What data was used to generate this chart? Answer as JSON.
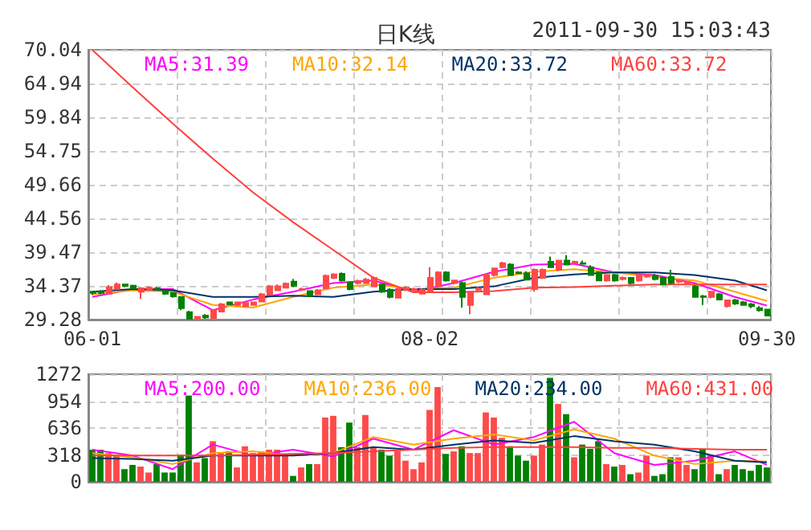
{
  "chart_data": [
    {
      "type": "candlestick",
      "title": "日K线",
      "annotations": [
        "2011-09-30 15:03:43"
      ],
      "categories": [
        "06-01",
        null,
        null,
        null,
        null,
        null,
        null,
        null,
        null,
        null,
        null,
        null,
        null,
        null,
        null,
        null,
        null,
        null,
        null,
        null,
        null,
        null,
        null,
        null,
        null,
        null,
        null,
        null,
        null,
        null,
        null,
        null,
        null,
        null,
        null,
        null,
        null,
        null,
        null,
        null,
        null,
        null,
        "08-02",
        null,
        null,
        null,
        null,
        null,
        null,
        null,
        null,
        null,
        null,
        null,
        null,
        null,
        null,
        null,
        null,
        null,
        null,
        null,
        null,
        null,
        null,
        null,
        null,
        null,
        null,
        null,
        null,
        null,
        null,
        null,
        null,
        null,
        null,
        null,
        null,
        null,
        null,
        null,
        null,
        null,
        "09-30"
      ],
      "ohlc": [
        [
          33.5,
          33.6,
          33.0,
          33.3
        ],
        [
          33.5,
          33.7,
          33.1,
          33.3
        ],
        [
          33.2,
          34.5,
          33.1,
          34.2
        ],
        [
          33.9,
          34.9,
          33.8,
          34.6
        ],
        [
          34.6,
          34.7,
          34.2,
          34.4
        ],
        [
          34.4,
          34.5,
          33.9,
          34.0
        ],
        [
          33.5,
          34.2,
          32.4,
          34.0
        ],
        [
          33.8,
          34.3,
          33.6,
          34.1
        ],
        [
          34.0,
          34.2,
          33.8,
          33.9
        ],
        [
          33.6,
          33.8,
          33.0,
          33.2
        ],
        [
          33.3,
          33.4,
          32.6,
          32.8
        ],
        [
          32.7,
          32.8,
          30.7,
          31.0
        ],
        [
          30.4,
          30.6,
          29.3,
          29.4
        ],
        [
          29.4,
          29.8,
          29.3,
          29.7
        ],
        [
          29.9,
          30.1,
          29.4,
          29.6
        ],
        [
          29.5,
          30.9,
          29.4,
          30.7
        ],
        [
          30.5,
          31.8,
          30.4,
          31.6
        ],
        [
          31.9,
          32.0,
          31.5,
          31.6
        ],
        [
          31.5,
          32.0,
          31.3,
          31.9
        ],
        [
          31.3,
          32.0,
          31.2,
          31.8
        ],
        [
          31.5,
          32.0,
          31.4,
          31.9
        ],
        [
          32.0,
          33.3,
          31.9,
          33.1
        ],
        [
          33.0,
          34.5,
          32.9,
          34.3
        ],
        [
          33.7,
          34.6,
          33.6,
          34.3
        ],
        [
          34.1,
          34.9,
          34.0,
          34.7
        ],
        [
          35.0,
          35.4,
          34.2,
          34.4
        ],
        [
          33.8,
          34.1,
          33.6,
          33.9
        ],
        [
          33.6,
          33.7,
          32.8,
          32.9
        ],
        [
          33.1,
          33.9,
          33.0,
          33.7
        ],
        [
          34.0,
          36.1,
          33.9,
          35.9
        ],
        [
          35.6,
          36.3,
          35.4,
          36.1
        ],
        [
          36.2,
          36.4,
          35.0,
          35.2
        ],
        [
          34.9,
          35.0,
          33.7,
          33.9
        ],
        [
          34.8,
          35.3,
          34.6,
          35.1
        ],
        [
          34.8,
          35.6,
          34.7,
          35.3
        ],
        [
          34.3,
          35.8,
          34.2,
          35.6
        ],
        [
          34.6,
          34.7,
          33.3,
          33.5
        ],
        [
          33.8,
          34.0,
          32.5,
          32.7
        ],
        [
          32.6,
          34.1,
          32.5,
          33.9
        ],
        [
          33.8,
          34.3,
          33.6,
          34.1
        ],
        [
          33.5,
          34.1,
          33.3,
          33.9
        ],
        [
          33.2,
          34.0,
          33.1,
          33.8
        ],
        [
          33.5,
          37.2,
          33.3,
          35.6
        ],
        [
          34.3,
          36.6,
          34.1,
          36.4
        ],
        [
          36.4,
          36.6,
          35.0,
          35.2
        ],
        [
          34.8,
          35.3,
          34.6,
          35.2
        ],
        [
          34.8,
          35.0,
          31.1,
          32.7
        ],
        [
          31.5,
          33.6,
          30.1,
          33.5
        ],
        [
          33.8,
          34.2,
          33.6,
          34.0
        ],
        [
          33.1,
          36.2,
          33.0,
          36.0
        ],
        [
          36.0,
          37.1,
          35.8,
          37.0
        ],
        [
          37.2,
          38.0,
          37.0,
          37.8
        ],
        [
          37.6,
          37.8,
          36.0,
          36.0
        ],
        [
          36.4,
          36.6,
          36.2,
          36.3
        ],
        [
          36.3,
          36.6,
          35.2,
          35.3
        ],
        [
          33.9,
          37.0,
          33.5,
          36.8
        ],
        [
          35.6,
          37.0,
          35.4,
          36.8
        ],
        [
          38.0,
          38.8,
          37.1,
          37.2
        ],
        [
          36.8,
          38.3,
          36.6,
          38.2
        ],
        [
          38.2,
          39.0,
          37.5,
          37.6
        ],
        [
          37.8,
          38.2,
          37.7,
          38.0
        ],
        [
          37.8,
          38.2,
          37.6,
          37.7
        ],
        [
          37.2,
          37.5,
          36.0,
          36.0
        ],
        [
          36.4,
          36.6,
          35.2,
          35.2
        ],
        [
          35.2,
          36.1,
          35.0,
          36.0
        ],
        [
          36.0,
          36.2,
          35.0,
          35.2
        ],
        [
          35.4,
          35.8,
          35.2,
          35.6
        ],
        [
          35.6,
          35.7,
          34.6,
          34.8
        ],
        [
          35.2,
          36.1,
          35.0,
          36.0
        ],
        [
          35.8,
          36.2,
          35.6,
          36.0
        ],
        [
          35.9,
          36.2,
          35.2,
          35.4
        ],
        [
          35.6,
          35.8,
          34.5,
          34.6
        ],
        [
          35.7,
          36.8,
          34.6,
          34.8
        ],
        [
          35.0,
          35.4,
          34.8,
          35.2
        ],
        [
          34.8,
          35.1,
          34.6,
          35.0
        ],
        [
          34.3,
          34.5,
          32.6,
          32.7
        ],
        [
          32.8,
          33.0,
          31.5,
          32.7
        ],
        [
          32.7,
          33.6,
          32.5,
          33.5
        ],
        [
          33.1,
          33.3,
          32.2,
          32.3
        ],
        [
          31.3,
          32.3,
          31.1,
          32.2
        ],
        [
          32.2,
          32.4,
          31.5,
          31.7
        ],
        [
          31.9,
          32.1,
          31.4,
          31.5
        ],
        [
          31.6,
          31.8,
          31.0,
          31.3
        ],
        [
          31.0,
          31.3,
          30.5,
          30.7
        ],
        [
          30.8,
          30.9,
          29.8,
          29.9
        ]
      ],
      "colors": [
        "#008000",
        "#008000",
        "#ff4a4a",
        "#ff4a4a",
        "#008000",
        "#008000",
        "#ff4a4a",
        "#ff4a4a",
        "#008000",
        "#008000",
        "#008000",
        "#008000",
        "#008000",
        "#ff4a4a",
        "#008000",
        "#ff4a4a",
        "#ff4a4a",
        "#008000",
        "#ff4a4a",
        "#ff4a4a",
        "#ff4a4a",
        "#ff4a4a",
        "#ff4a4a",
        "#ff4a4a",
        "#ff4a4a",
        "#008000",
        "#ff4a4a",
        "#008000",
        "#ff4a4a",
        "#ff4a4a",
        "#ff4a4a",
        "#008000",
        "#008000",
        "#ff4a4a",
        "#ff4a4a",
        "#ff4a4a",
        "#008000",
        "#008000",
        "#ff4a4a",
        "#ff4a4a",
        "#ff4a4a",
        "#ff4a4a",
        "#ff4a4a",
        "#ff4a4a",
        "#008000",
        "#ff4a4a",
        "#008000",
        "#ff4a4a",
        "#ff4a4a",
        "#ff4a4a",
        "#ff4a4a",
        "#ff4a4a",
        "#008000",
        "#008000",
        "#008000",
        "#ff4a4a",
        "#ff4a4a",
        "#008000",
        "#ff4a4a",
        "#008000",
        "#ff4a4a",
        "#008000",
        "#008000",
        "#008000",
        "#ff4a4a",
        "#008000",
        "#ff4a4a",
        "#008000",
        "#ff4a4a",
        "#ff4a4a",
        "#008000",
        "#008000",
        "#008000",
        "#ff4a4a",
        "#ff4a4a",
        "#008000",
        "#008000",
        "#ff4a4a",
        "#008000",
        "#ff4a4a",
        "#008000",
        "#008000",
        "#008000",
        "#008000",
        "#008000"
      ],
      "series": [
        {
          "type": "line",
          "name": "MA5:31.39",
          "color": "#ff00ff",
          "values": [
            32.7,
            null,
            null,
            null,
            null,
            33.9,
            null,
            null,
            null,
            null,
            33.9,
            null,
            null,
            null,
            null,
            30.7,
            null,
            null,
            null,
            null,
            32.3,
            null,
            null,
            null,
            null,
            33.5,
            null,
            null,
            null,
            null,
            34.8,
            null,
            null,
            null,
            null,
            35.2,
            null,
            null,
            null,
            null,
            33.5,
            null,
            null,
            null,
            null,
            34.8,
            null,
            null,
            null,
            null,
            36.5,
            null,
            null,
            null,
            null,
            37.6,
            null,
            null,
            null,
            null,
            37.7,
            null,
            null,
            null,
            null,
            36.4,
            null,
            null,
            null,
            null,
            36.0,
            null,
            null,
            null,
            null,
            34.8,
            null,
            null,
            null,
            null,
            32.7,
            null,
            null,
            null,
            31.4
          ]
        },
        {
          "type": "line",
          "name": "MA10:32.14",
          "color": "#ffa500",
          "values": [
            33.1,
            null,
            null,
            null,
            null,
            33.7,
            null,
            null,
            null,
            null,
            33.5,
            null,
            null,
            null,
            null,
            31.5,
            null,
            null,
            null,
            null,
            31.1,
            null,
            null,
            null,
            null,
            32.7,
            null,
            null,
            null,
            null,
            34.1,
            null,
            null,
            null,
            null,
            34.6,
            null,
            null,
            null,
            null,
            33.9,
            null,
            null,
            null,
            null,
            34.1,
            null,
            null,
            null,
            null,
            35.6,
            null,
            null,
            null,
            null,
            36.5,
            null,
            null,
            null,
            null,
            36.9,
            null,
            null,
            null,
            null,
            36.4,
            null,
            null,
            null,
            null,
            35.7,
            null,
            null,
            null,
            null,
            35.2,
            null,
            null,
            null,
            null,
            33.5,
            null,
            null,
            null,
            32.1
          ]
        },
        {
          "type": "line",
          "name": "MA20:33.72",
          "color": "#003366",
          "values": [
            33.5,
            null,
            null,
            null,
            null,
            33.9,
            null,
            null,
            null,
            null,
            33.7,
            null,
            null,
            null,
            null,
            32.7,
            null,
            null,
            null,
            null,
            32.7,
            null,
            null,
            null,
            null,
            32.9,
            null,
            null,
            null,
            null,
            32.7,
            null,
            null,
            null,
            null,
            33.5,
            null,
            null,
            null,
            null,
            33.9,
            null,
            null,
            null,
            null,
            33.9,
            null,
            null,
            null,
            null,
            34.3,
            null,
            null,
            null,
            null,
            35.6,
            null,
            null,
            null,
            null,
            36.1,
            null,
            null,
            null,
            null,
            36.4,
            null,
            null,
            null,
            null,
            36.4,
            null,
            null,
            null,
            null,
            36.0,
            null,
            null,
            null,
            null,
            35.2,
            null,
            null,
            null,
            33.7
          ]
        },
        {
          "type": "line",
          "name": "MA60:33.72",
          "color": "#ff4040",
          "values": [
            70.0,
            null,
            null,
            null,
            null,
            64.4,
            null,
            null,
            null,
            null,
            58.9,
            null,
            null,
            null,
            null,
            53.6,
            null,
            null,
            null,
            null,
            48.5,
            null,
            null,
            null,
            null,
            44.0,
            null,
            null,
            null,
            null,
            39.8,
            null,
            null,
            null,
            null,
            35.6,
            null,
            null,
            null,
            null,
            33.4,
            null,
            null,
            null,
            null,
            33.4,
            null,
            null,
            null,
            null,
            33.6,
            null,
            null,
            null,
            null,
            34.1,
            null,
            null,
            null,
            null,
            34.2,
            null,
            null,
            null,
            null,
            34.4,
            null,
            null,
            null,
            null,
            34.6,
            null,
            null,
            null,
            null,
            34.6,
            null,
            null,
            null,
            null,
            34.6,
            null,
            null,
            null,
            34.6
          ]
        }
      ],
      "ylim": [
        29.28,
        70.04
      ],
      "yticks": [
        29.28,
        34.37,
        39.47,
        44.56,
        49.66,
        54.75,
        59.84,
        64.94,
        70.04
      ],
      "grid": true,
      "legend": "top"
    },
    {
      "type": "bar",
      "categories": [
        null,
        null,
        null,
        null,
        null,
        null,
        null,
        null,
        null,
        null,
        null,
        null,
        null,
        null,
        null,
        null,
        null,
        null,
        null,
        null,
        null,
        null,
        null,
        null,
        null,
        null,
        null,
        null,
        null,
        null,
        null,
        null,
        null,
        null,
        null,
        null,
        null,
        null,
        null,
        null,
        null,
        null,
        null,
        null,
        null,
        null,
        null,
        null,
        null,
        null,
        null,
        null,
        null,
        null,
        null,
        null,
        null,
        null,
        null,
        null,
        null,
        null,
        null,
        null,
        null,
        null,
        null,
        null,
        null,
        null,
        null,
        null,
        null,
        null,
        null,
        null,
        null,
        null,
        null,
        null,
        null,
        null,
        null,
        null,
        null
      ],
      "series": [
        {
          "type": "bar",
          "colors": [
            "#008000",
            "#008000",
            "#ff4a4a",
            "#ff4a4a",
            "#008000",
            "#008000",
            "#ff4a4a",
            "#ff4a4a",
            "#008000",
            "#008000",
            "#008000",
            "#008000",
            "#008000",
            "#ff4a4a",
            "#008000",
            "#ff4a4a",
            "#ff4a4a",
            "#008000",
            "#ff4a4a",
            "#ff4a4a",
            "#ff4a4a",
            "#ff4a4a",
            "#ff4a4a",
            "#ff4a4a",
            "#ff4a4a",
            "#008000",
            "#ff4a4a",
            "#008000",
            "#ff4a4a",
            "#ff4a4a",
            "#ff4a4a",
            "#008000",
            "#008000",
            "#ff4a4a",
            "#ff4a4a",
            "#ff4a4a",
            "#008000",
            "#008000",
            "#ff4a4a",
            "#ff4a4a",
            "#ff4a4a",
            "#ff4a4a",
            "#ff4a4a",
            "#ff4a4a",
            "#008000",
            "#ff4a4a",
            "#008000",
            "#ff4a4a",
            "#ff4a4a",
            "#ff4a4a",
            "#ff4a4a",
            "#ff4a4a",
            "#008000",
            "#008000",
            "#008000",
            "#ff4a4a",
            "#ff4a4a",
            "#008000",
            "#ff4a4a",
            "#008000",
            "#ff4a4a",
            "#008000",
            "#008000",
            "#008000",
            "#ff4a4a",
            "#008000",
            "#ff4a4a",
            "#008000",
            "#ff4a4a",
            "#ff4a4a",
            "#008000",
            "#008000",
            "#008000",
            "#ff4a4a",
            "#ff4a4a",
            "#008000",
            "#008000",
            "#ff4a4a",
            "#008000",
            "#ff4a4a",
            "#008000",
            "#008000",
            "#008000",
            "#008000",
            "#008000"
          ],
          "values": [
            380,
            380,
            340,
            310,
            150,
            200,
            180,
            110,
            210,
            110,
            110,
            320,
            1020,
            230,
            280,
            480,
            340,
            360,
            170,
            420,
            340,
            360,
            380,
            380,
            320,
            70,
            170,
            210,
            210,
            760,
            780,
            410,
            700,
            410,
            790,
            410,
            380,
            310,
            360,
            250,
            150,
            230,
            850,
            1120,
            330,
            360,
            420,
            340,
            340,
            820,
            760,
            520,
            420,
            310,
            250,
            310,
            440,
            1230,
            920,
            800,
            290,
            440,
            390,
            480,
            210,
            180,
            200,
            90,
            110,
            310,
            70,
            90,
            290,
            290,
            200,
            150,
            390,
            320,
            90,
            150,
            200,
            150,
            130,
            200,
            170
          ]
        },
        {
          "type": "line",
          "name": "MA5:200.00",
          "color": "#ff00ff",
          "values": [
            380,
            null,
            null,
            null,
            null,
            310,
            null,
            null,
            null,
            null,
            150,
            null,
            null,
            null,
            null,
            440,
            null,
            null,
            null,
            null,
            310,
            null,
            null,
            null,
            null,
            380,
            null,
            null,
            null,
            null,
            300,
            null,
            null,
            null,
            null,
            510,
            null,
            null,
            null,
            null,
            380,
            null,
            null,
            null,
            null,
            610,
            null,
            null,
            null,
            null,
            440,
            null,
            null,
            null,
            null,
            530,
            null,
            null,
            null,
            null,
            710,
            null,
            null,
            null,
            null,
            340,
            null,
            null,
            null,
            null,
            200,
            null,
            null,
            null,
            null,
            250,
            null,
            null,
            null,
            null,
            360,
            null,
            null,
            null,
            200
          ]
        },
        {
          "type": "line",
          "name": "MA10:236.00",
          "color": "#ffa500",
          "values": [
            340,
            null,
            null,
            null,
            null,
            290,
            null,
            null,
            null,
            null,
            210,
            null,
            null,
            null,
            null,
            340,
            null,
            null,
            null,
            null,
            360,
            null,
            null,
            null,
            null,
            310,
            null,
            null,
            null,
            null,
            340,
            null,
            null,
            null,
            null,
            530,
            null,
            null,
            null,
            null,
            440,
            null,
            null,
            null,
            null,
            510,
            null,
            null,
            null,
            null,
            560,
            null,
            null,
            null,
            null,
            490,
            null,
            null,
            null,
            null,
            620,
            null,
            null,
            null,
            null,
            510,
            null,
            null,
            null,
            null,
            310,
            null,
            null,
            null,
            null,
            210,
            null,
            null,
            null,
            null,
            250,
            null,
            null,
            null,
            240
          ]
        },
        {
          "type": "line",
          "name": "MA20:234.00",
          "color": "#003366",
          "values": [
            280,
            null,
            null,
            null,
            null,
            270,
            null,
            null,
            null,
            null,
            250,
            null,
            null,
            null,
            null,
            310,
            null,
            null,
            null,
            null,
            310,
            null,
            null,
            null,
            null,
            310,
            null,
            null,
            null,
            null,
            340,
            null,
            null,
            null,
            null,
            410,
            null,
            null,
            null,
            null,
            380,
            null,
            null,
            null,
            null,
            440,
            null,
            null,
            null,
            null,
            490,
            null,
            null,
            null,
            null,
            460,
            null,
            null,
            null,
            null,
            540,
            null,
            null,
            null,
            null,
            480,
            null,
            null,
            null,
            null,
            440,
            null,
            null,
            null,
            null,
            360,
            null,
            null,
            null,
            null,
            250,
            null,
            null,
            null,
            230
          ]
        },
        {
          "type": "line",
          "name": "MA60:431.00",
          "color": "#ff4040",
          "values": [
            310,
            null,
            null,
            null,
            null,
            310,
            null,
            null,
            null,
            null,
            310,
            null,
            null,
            null,
            null,
            310,
            null,
            null,
            null,
            null,
            320,
            null,
            null,
            null,
            null,
            330,
            null,
            null,
            null,
            null,
            340,
            null,
            null,
            null,
            null,
            360,
            null,
            null,
            null,
            null,
            380,
            null,
            null,
            null,
            null,
            400,
            null,
            null,
            null,
            null,
            410,
            null,
            null,
            null,
            null,
            410,
            null,
            null,
            null,
            null,
            410,
            null,
            null,
            null,
            null,
            400,
            null,
            null,
            null,
            null,
            400,
            null,
            null,
            null,
            null,
            390,
            null,
            null,
            null,
            null,
            380,
            null,
            null,
            null,
            380
          ]
        }
      ],
      "ylim": [
        0,
        1272
      ],
      "yticks": [
        0,
        318,
        636,
        954,
        1272
      ],
      "grid": true,
      "legend": "top"
    }
  ]
}
